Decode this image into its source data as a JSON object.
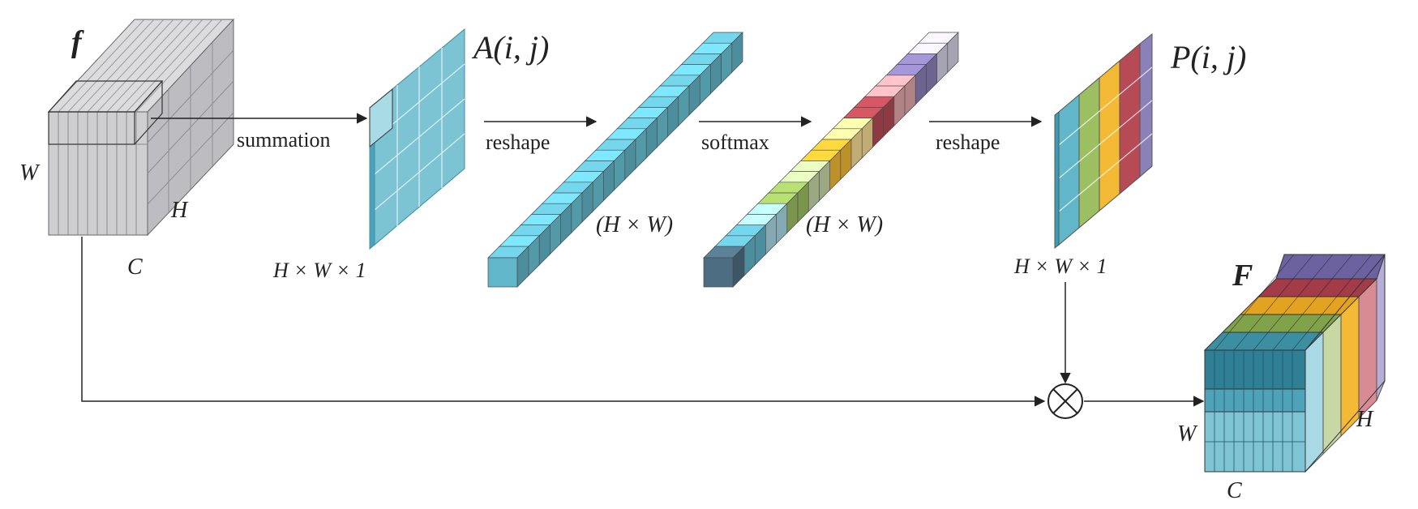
{
  "labels": {
    "f": "f",
    "W_in": "W",
    "H_in": "H",
    "C_in": "C",
    "summation": "summation",
    "hw1_left": "H × W × 1",
    "A": "A(i, j)",
    "reshape1": "reshape",
    "hw_1": "(H × W)",
    "softmax": "softmax",
    "hw_2": "(H × W)",
    "reshape2": "reshape",
    "P": "P(i, j)",
    "hw1_right": "H × W × 1",
    "F": "F",
    "W_out": "W",
    "H_out": "H",
    "C_out": "C"
  },
  "colors": {
    "gray": "#c9c9cc",
    "gray_side": "#b9b9bd",
    "teal": "#62b6c9",
    "teal_light": "#a9d9e4",
    "teal_dark": "#2f8ea6",
    "green": "#9cbf62",
    "yellow": "#f4b935",
    "red": "#b64a55",
    "purple": "#8c80b8",
    "stroke": "#333333"
  },
  "strip_palette": [
    "#62b6c9",
    "#a9d9e4",
    "#9cbf62",
    "#c8d8a5",
    "#f4b935",
    "#f8dc95",
    "#b64a55",
    "#e3a7ac",
    "#8c80b8",
    "#d5d1e6"
  ]
}
